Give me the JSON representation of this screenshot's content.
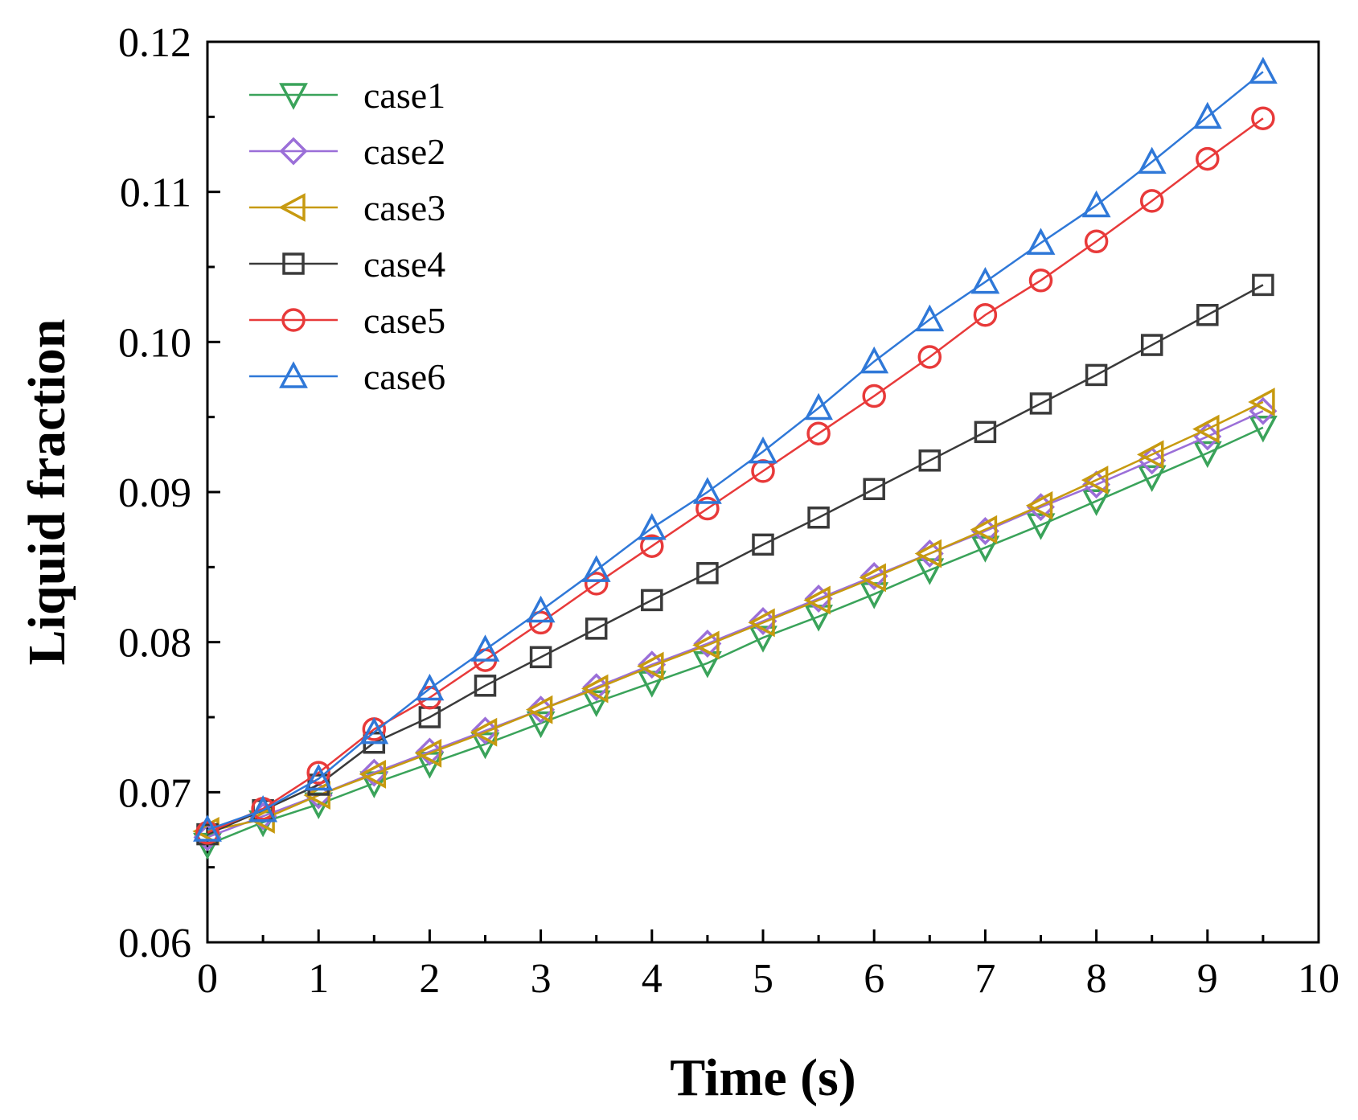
{
  "chart_data": {
    "type": "line",
    "title": "",
    "xlabel": "Time (s)",
    "ylabel": "Liquid fraction",
    "xlim": [
      0,
      10
    ],
    "ylim": [
      0.06,
      0.12
    ],
    "xticks": [
      0,
      1,
      2,
      3,
      4,
      5,
      6,
      7,
      8,
      9,
      10
    ],
    "xtick_labels": [
      "0",
      "1",
      "2",
      "3",
      "4",
      "5",
      "6",
      "7",
      "8",
      "9",
      "10"
    ],
    "yticks": [
      0.06,
      0.07,
      0.08,
      0.09,
      0.1,
      0.11,
      0.12
    ],
    "ytick_labels": [
      "0.06",
      "0.07",
      "0.08",
      "0.09",
      "0.10",
      "0.11",
      "0.12"
    ],
    "grid": false,
    "legend_position": "top-left",
    "x": [
      0,
      0.5,
      1,
      1.5,
      2,
      2.5,
      3,
      3.5,
      4,
      4.5,
      5,
      5.5,
      6,
      6.5,
      7,
      7.5,
      8,
      8.5,
      9,
      9.5
    ],
    "series": [
      {
        "name": "case1",
        "marker": "triangle-down",
        "color": "#3aa35a",
        "values": [
          0.0665,
          0.068,
          0.0692,
          0.0706,
          0.0719,
          0.0732,
          0.0746,
          0.076,
          0.0773,
          0.0786,
          0.0803,
          0.0817,
          0.0832,
          0.0848,
          0.0863,
          0.0878,
          0.0894,
          0.091,
          0.0926,
          0.0943
        ]
      },
      {
        "name": "case2",
        "marker": "diamond",
        "color": "#9b6fd8",
        "values": [
          0.067,
          0.0684,
          0.0698,
          0.0713,
          0.0727,
          0.0741,
          0.0755,
          0.077,
          0.0785,
          0.0799,
          0.0814,
          0.0829,
          0.0844,
          0.0859,
          0.0874,
          0.089,
          0.0905,
          0.0921,
          0.0937,
          0.0954
        ]
      },
      {
        "name": "case3",
        "marker": "triangle-left",
        "color": "#c79a10",
        "values": [
          0.0674,
          0.0682,
          0.0698,
          0.0712,
          0.0726,
          0.074,
          0.0755,
          0.0769,
          0.0784,
          0.0798,
          0.0813,
          0.0828,
          0.0843,
          0.0859,
          0.0875,
          0.0891,
          0.0908,
          0.0925,
          0.0942,
          0.096
        ]
      },
      {
        "name": "case4",
        "marker": "square",
        "color": "#3a3a3a",
        "values": [
          0.0672,
          0.0688,
          0.0705,
          0.0733,
          0.075,
          0.0771,
          0.079,
          0.0809,
          0.0828,
          0.0846,
          0.0865,
          0.0883,
          0.0902,
          0.0921,
          0.094,
          0.0959,
          0.0978,
          0.0998,
          0.1018,
          0.1038
        ]
      },
      {
        "name": "case5",
        "marker": "circle",
        "color": "#e83a3a",
        "values": [
          0.0673,
          0.0689,
          0.0713,
          0.0742,
          0.0763,
          0.0788,
          0.0813,
          0.0839,
          0.0864,
          0.0889,
          0.0914,
          0.0939,
          0.0964,
          0.099,
          0.1018,
          0.1041,
          0.1067,
          0.1094,
          0.1122,
          0.1149
        ]
      },
      {
        "name": "case6",
        "marker": "triangle-up",
        "color": "#2f78d8",
        "values": [
          0.0675,
          0.0688,
          0.0709,
          0.074,
          0.0769,
          0.0795,
          0.0821,
          0.0848,
          0.0876,
          0.09,
          0.0927,
          0.0956,
          0.0987,
          0.1015,
          0.104,
          0.1066,
          0.1091,
          0.112,
          0.115,
          0.118
        ]
      }
    ]
  }
}
